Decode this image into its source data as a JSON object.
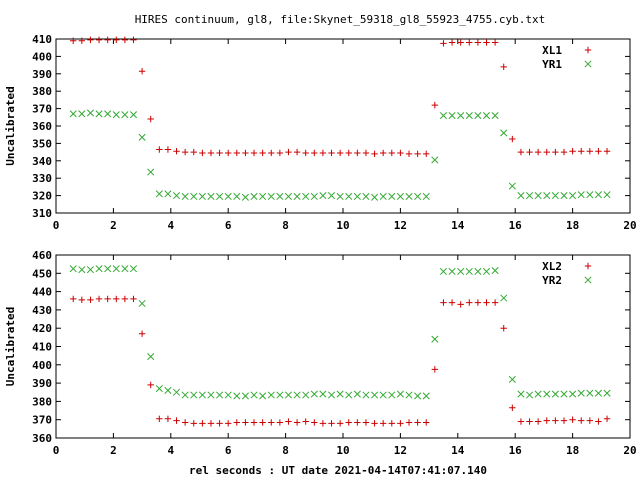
{
  "title": "HIRES continuum, gl8, file:Skynet_59318_gl8_55923_4755.cyb.txt",
  "xlabel": "rel seconds : UT date 2021-04-14T07:41:07.140",
  "colors": {
    "red": "#cc0000",
    "green": "#33aa33"
  },
  "chart_data": [
    {
      "type": "scatter",
      "ylabel": "Uncalibrated",
      "xlim": [
        0,
        20
      ],
      "ylim": [
        310,
        410
      ],
      "xticks": [
        0,
        2,
        4,
        6,
        8,
        10,
        12,
        14,
        16,
        18,
        20
      ],
      "yticks": [
        310,
        320,
        330,
        340,
        350,
        360,
        370,
        380,
        390,
        400,
        410
      ],
      "legend": "top-right",
      "series": [
        {
          "name": "XL1",
          "marker": "plus",
          "color": "red",
          "points": [
            [
              0.6,
              409
            ],
            [
              0.9,
              409
            ],
            [
              1.2,
              409.5
            ],
            [
              1.5,
              409.5
            ],
            [
              1.8,
              409.5
            ],
            [
              2.1,
              409.5
            ],
            [
              2.4,
              409.5
            ],
            [
              2.7,
              409.5
            ],
            [
              3.0,
              391.5
            ],
            [
              3.3,
              364
            ],
            [
              3.6,
              346.5
            ],
            [
              3.9,
              346.5
            ],
            [
              4.2,
              345.5
            ],
            [
              4.5,
              345
            ],
            [
              4.8,
              345
            ],
            [
              5.1,
              344.5
            ],
            [
              5.4,
              344.5
            ],
            [
              5.7,
              344.5
            ],
            [
              6.0,
              344.5
            ],
            [
              6.3,
              344.5
            ],
            [
              6.6,
              344.5
            ],
            [
              6.9,
              344.5
            ],
            [
              7.2,
              344.5
            ],
            [
              7.5,
              344.5
            ],
            [
              7.8,
              344.5
            ],
            [
              8.1,
              345
            ],
            [
              8.4,
              345
            ],
            [
              8.7,
              344.5
            ],
            [
              9.0,
              344.5
            ],
            [
              9.3,
              344.5
            ],
            [
              9.6,
              344.5
            ],
            [
              9.9,
              344.5
            ],
            [
              10.2,
              344.5
            ],
            [
              10.5,
              344.5
            ],
            [
              10.8,
              344.5
            ],
            [
              11.1,
              344
            ],
            [
              11.4,
              344.5
            ],
            [
              11.7,
              344.5
            ],
            [
              12.0,
              344.5
            ],
            [
              12.3,
              344
            ],
            [
              12.6,
              344
            ],
            [
              12.9,
              344
            ],
            [
              13.2,
              372
            ],
            [
              13.5,
              407.5
            ],
            [
              13.8,
              408
            ],
            [
              14.1,
              408
            ],
            [
              14.4,
              408
            ],
            [
              14.7,
              408
            ],
            [
              15.0,
              408
            ],
            [
              15.3,
              408
            ],
            [
              15.6,
              394
            ],
            [
              15.9,
              352.5
            ],
            [
              16.2,
              345
            ],
            [
              16.5,
              345
            ],
            [
              16.8,
              345
            ],
            [
              17.1,
              345
            ],
            [
              17.4,
              345
            ],
            [
              17.7,
              345
            ],
            [
              18.0,
              345.5
            ],
            [
              18.3,
              345.5
            ],
            [
              18.6,
              345.5
            ],
            [
              18.9,
              345.5
            ],
            [
              19.2,
              345.5
            ]
          ]
        },
        {
          "name": "YR1",
          "marker": "cross",
          "color": "green",
          "points": [
            [
              0.6,
              367
            ],
            [
              0.9,
              367
            ],
            [
              1.2,
              367.5
            ],
            [
              1.5,
              367
            ],
            [
              1.8,
              367
            ],
            [
              2.1,
              366.5
            ],
            [
              2.4,
              366.5
            ],
            [
              2.7,
              366.5
            ],
            [
              3.0,
              353.5
            ],
            [
              3.3,
              333.5
            ],
            [
              3.6,
              321
            ],
            [
              3.9,
              321
            ],
            [
              4.2,
              320
            ],
            [
              4.5,
              319.5
            ],
            [
              4.8,
              319.5
            ],
            [
              5.1,
              319.5
            ],
            [
              5.4,
              319.5
            ],
            [
              5.7,
              319.5
            ],
            [
              6.0,
              319.5
            ],
            [
              6.3,
              319.5
            ],
            [
              6.6,
              319
            ],
            [
              6.9,
              319.5
            ],
            [
              7.2,
              319.5
            ],
            [
              7.5,
              319.5
            ],
            [
              7.8,
              319.5
            ],
            [
              8.1,
              319.5
            ],
            [
              8.4,
              319.5
            ],
            [
              8.7,
              319.5
            ],
            [
              9.0,
              319.5
            ],
            [
              9.3,
              320
            ],
            [
              9.6,
              320
            ],
            [
              9.9,
              319.5
            ],
            [
              10.2,
              319.5
            ],
            [
              10.5,
              319.5
            ],
            [
              10.8,
              319.5
            ],
            [
              11.1,
              319
            ],
            [
              11.4,
              319.5
            ],
            [
              11.7,
              319.5
            ],
            [
              12.0,
              319.5
            ],
            [
              12.3,
              319.5
            ],
            [
              12.6,
              319.5
            ],
            [
              12.9,
              319.5
            ],
            [
              13.2,
              340.5
            ],
            [
              13.5,
              366
            ],
            [
              13.8,
              366
            ],
            [
              14.1,
              366
            ],
            [
              14.4,
              366
            ],
            [
              14.7,
              366
            ],
            [
              15.0,
              366
            ],
            [
              15.3,
              366
            ],
            [
              15.6,
              356
            ],
            [
              15.9,
              325.5
            ],
            [
              16.2,
              320
            ],
            [
              16.5,
              320
            ],
            [
              16.8,
              320
            ],
            [
              17.1,
              320
            ],
            [
              17.4,
              320
            ],
            [
              17.7,
              320
            ],
            [
              18.0,
              320
            ],
            [
              18.3,
              320.5
            ],
            [
              18.6,
              320.5
            ],
            [
              18.9,
              320.5
            ],
            [
              19.2,
              320.5
            ]
          ]
        }
      ]
    },
    {
      "type": "scatter",
      "ylabel": "Uncalibrated",
      "xlim": [
        0,
        20
      ],
      "ylim": [
        360,
        460
      ],
      "xticks": [
        0,
        2,
        4,
        6,
        8,
        10,
        12,
        14,
        16,
        18,
        20
      ],
      "yticks": [
        360,
        370,
        380,
        390,
        400,
        410,
        420,
        430,
        440,
        450,
        460
      ],
      "legend": "top-right",
      "series": [
        {
          "name": "XL2",
          "marker": "plus",
          "color": "red",
          "points": [
            [
              0.6,
              436
            ],
            [
              0.9,
              435.5
            ],
            [
              1.2,
              435.5
            ],
            [
              1.5,
              436
            ],
            [
              1.8,
              436
            ],
            [
              2.1,
              436
            ],
            [
              2.4,
              436
            ],
            [
              2.7,
              436
            ],
            [
              3.0,
              417
            ],
            [
              3.3,
              389
            ],
            [
              3.6,
              370.5
            ],
            [
              3.9,
              370.5
            ],
            [
              4.2,
              369.5
            ],
            [
              4.5,
              368.5
            ],
            [
              4.8,
              368
            ],
            [
              5.1,
              368
            ],
            [
              5.4,
              368
            ],
            [
              5.7,
              368
            ],
            [
              6.0,
              368
            ],
            [
              6.3,
              368.5
            ],
            [
              6.6,
              368.5
            ],
            [
              6.9,
              368.5
            ],
            [
              7.2,
              368.5
            ],
            [
              7.5,
              368.5
            ],
            [
              7.8,
              368.5
            ],
            [
              8.1,
              369
            ],
            [
              8.4,
              368.5
            ],
            [
              8.7,
              369
            ],
            [
              9.0,
              368.5
            ],
            [
              9.3,
              368
            ],
            [
              9.6,
              368
            ],
            [
              9.9,
              368
            ],
            [
              10.2,
              368.5
            ],
            [
              10.5,
              368.5
            ],
            [
              10.8,
              368.5
            ],
            [
              11.1,
              368
            ],
            [
              11.4,
              368
            ],
            [
              11.7,
              368
            ],
            [
              12.0,
              368
            ],
            [
              12.3,
              368.5
            ],
            [
              12.6,
              368.5
            ],
            [
              12.9,
              368.5
            ],
            [
              13.2,
              397.5
            ],
            [
              13.5,
              434
            ],
            [
              13.8,
              434
            ],
            [
              14.1,
              433
            ],
            [
              14.4,
              434
            ],
            [
              14.7,
              434
            ],
            [
              15.0,
              434
            ],
            [
              15.3,
              434
            ],
            [
              15.6,
              420
            ],
            [
              15.9,
              376.5
            ],
            [
              16.2,
              369
            ],
            [
              16.5,
              369
            ],
            [
              16.8,
              369
            ],
            [
              17.1,
              369.5
            ],
            [
              17.4,
              369.5
            ],
            [
              17.7,
              369.5
            ],
            [
              18.0,
              370
            ],
            [
              18.3,
              369.5
            ],
            [
              18.6,
              369.5
            ],
            [
              18.9,
              369
            ],
            [
              19.2,
              370.5
            ]
          ]
        },
        {
          "name": "YR2",
          "marker": "cross",
          "color": "green",
          "points": [
            [
              0.6,
              452.5
            ],
            [
              0.9,
              452
            ],
            [
              1.2,
              452
            ],
            [
              1.5,
              452.5
            ],
            [
              1.8,
              452.5
            ],
            [
              2.1,
              452.5
            ],
            [
              2.4,
              452.5
            ],
            [
              2.7,
              452.5
            ],
            [
              3.0,
              433.5
            ],
            [
              3.3,
              404.5
            ],
            [
              3.6,
              387
            ],
            [
              3.9,
              386
            ],
            [
              4.2,
              385
            ],
            [
              4.5,
              383.5
            ],
            [
              4.8,
              383.5
            ],
            [
              5.1,
              383.5
            ],
            [
              5.4,
              383.5
            ],
            [
              5.7,
              383.5
            ],
            [
              6.0,
              383.5
            ],
            [
              6.3,
              383
            ],
            [
              6.6,
              383
            ],
            [
              6.9,
              383.5
            ],
            [
              7.2,
              383
            ],
            [
              7.5,
              383.5
            ],
            [
              7.8,
              383.5
            ],
            [
              8.1,
              383.5
            ],
            [
              8.4,
              383.5
            ],
            [
              8.7,
              383.5
            ],
            [
              9.0,
              384
            ],
            [
              9.3,
              384
            ],
            [
              9.6,
              383.5
            ],
            [
              9.9,
              384
            ],
            [
              10.2,
              383.5
            ],
            [
              10.5,
              384
            ],
            [
              10.8,
              383.5
            ],
            [
              11.1,
              383.5
            ],
            [
              11.4,
              383.5
            ],
            [
              11.7,
              383.5
            ],
            [
              12.0,
              384
            ],
            [
              12.3,
              383.5
            ],
            [
              12.6,
              383
            ],
            [
              12.9,
              383
            ],
            [
              13.2,
              414
            ],
            [
              13.5,
              451
            ],
            [
              13.8,
              451
            ],
            [
              14.1,
              451
            ],
            [
              14.4,
              451
            ],
            [
              14.7,
              451
            ],
            [
              15.0,
              451
            ],
            [
              15.3,
              451.5
            ],
            [
              15.6,
              436.5
            ],
            [
              15.9,
              392
            ],
            [
              16.2,
              384
            ],
            [
              16.5,
              383.5
            ],
            [
              16.8,
              384
            ],
            [
              17.1,
              384
            ],
            [
              17.4,
              384
            ],
            [
              17.7,
              384
            ],
            [
              18.0,
              384
            ],
            [
              18.3,
              384.5
            ],
            [
              18.6,
              384.5
            ],
            [
              18.9,
              384.5
            ],
            [
              19.2,
              384.5
            ]
          ]
        }
      ]
    }
  ]
}
